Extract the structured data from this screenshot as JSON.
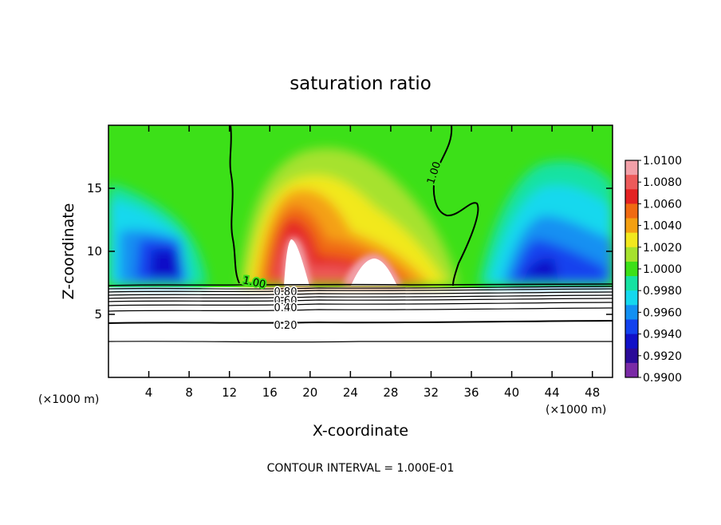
{
  "chart_data": {
    "type": "heatmap",
    "title": "saturation ratio",
    "xlabel": "X-coordinate",
    "ylabel": "Z-coordinate",
    "x_units": "(×1000 m)",
    "z_units": "(×1000 m)",
    "x_ticks": [
      4,
      8,
      12,
      16,
      20,
      24,
      28,
      32,
      36,
      40,
      44,
      48
    ],
    "y_ticks": [
      5,
      10,
      15
    ],
    "xlim": [
      0,
      50
    ],
    "ylim": [
      0,
      20
    ],
    "grid": false,
    "colorbar": {
      "placement": "right",
      "labels": [
        "1.0100",
        "1.0080",
        "1.0060",
        "1.0040",
        "1.0020",
        "1.0000",
        "0.9980",
        "0.9960",
        "0.9940",
        "0.9920",
        "0.9900"
      ],
      "colors": [
        "#f2a0a8",
        "#ec5a5a",
        "#e42222",
        "#f06a12",
        "#f4a012",
        "#f2e81e",
        "#a6e22e",
        "#3ce018",
        "#16e2a2",
        "#14d8ee",
        "#1290f2",
        "#1242ee",
        "#1010c8",
        "#2a0a98",
        "#7a2aa6"
      ]
    },
    "contour_labels": [
      "1.00",
      "1.00",
      "1.00",
      "0.80",
      "0.60",
      "0.40",
      "0.20"
    ],
    "footer": "CONTOUR INTERVAL = 1.000E-01"
  }
}
